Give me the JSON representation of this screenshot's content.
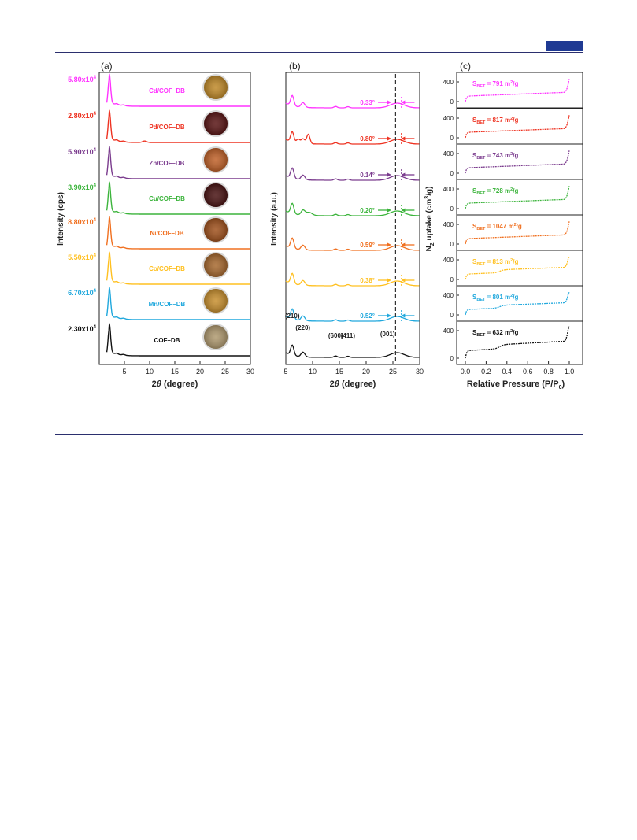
{
  "colors": {
    "Cd": "#ff33ff",
    "Pd": "#ee3322",
    "Zn": "#7b3c8e",
    "Cu": "#3cb43c",
    "Ni": "#f07020",
    "Co": "#ffc020",
    "Mn": "#20a8dd",
    "COF": "#111111",
    "header_rule": "#2b2f6e",
    "header_tag": "#1f3a93"
  },
  "chart_data": [
    {
      "type": "line",
      "panel_label": "(a)",
      "xlabel_prefix": "2",
      "xlabel_theta": "θ",
      "xlabel_suffix": " (degree)",
      "ylabel": "Intensity (cps)",
      "xlim": [
        0,
        30
      ],
      "xticks": [
        "5",
        "10",
        "15",
        "20",
        "25",
        "30"
      ],
      "series": [
        {
          "key": "Cd",
          "name": "Cd/COF–DB",
          "scale_base": "5.80x10",
          "scale_exp": "4",
          "photo": "#c08a2a"
        },
        {
          "key": "Pd",
          "name": "Pd/COF–DB",
          "scale_base": "2.80x10",
          "scale_exp": "4",
          "photo": "#5a1616"
        },
        {
          "key": "Zn",
          "name": "Zn/COF–DB",
          "scale_base": "5.90x10",
          "scale_exp": "4",
          "photo": "#c0622a"
        },
        {
          "key": "Cu",
          "name": "Cu/COF–DB",
          "scale_base": "3.90x10",
          "scale_exp": "4",
          "photo": "#4a1414"
        },
        {
          "key": "Ni",
          "name": "Ni/COF–DB",
          "scale_base": "8.80x10",
          "scale_exp": "4",
          "photo": "#a0521e"
        },
        {
          "key": "Co",
          "name": "Co/COF–DB",
          "scale_base": "5.50x10",
          "scale_exp": "4",
          "photo": "#a86a30"
        },
        {
          "key": "Mn",
          "name": "Mn/COF–DB",
          "scale_base": "6.70x10",
          "scale_exp": "4",
          "photo": "#c89030"
        },
        {
          "key": "COF",
          "name": "COF–DB",
          "scale_base": "2.30x10",
          "scale_exp": "4",
          "photo": "#b09a70"
        }
      ]
    },
    {
      "type": "line",
      "panel_label": "(b)",
      "xlabel_prefix": "2",
      "xlabel_theta": "θ",
      "xlabel_suffix": " (degree)",
      "ylabel": "Intensity (a.u.)",
      "xlim": [
        5,
        30
      ],
      "xticks": [
        "5",
        "10",
        "15",
        "20",
        "25",
        "30"
      ],
      "reference_line_x": 25.5,
      "shifts": [
        {
          "key": "Cd",
          "value": "0.33°"
        },
        {
          "key": "Pd",
          "value": "0.80°"
        },
        {
          "key": "Zn",
          "value": "0.14°"
        },
        {
          "key": "Cu",
          "value": "0.20°"
        },
        {
          "key": "Ni",
          "value": "0.59°"
        },
        {
          "key": "Co",
          "value": "0.38°"
        },
        {
          "key": "Mn",
          "value": "0.52°"
        }
      ],
      "peak_labels": [
        {
          "text": "(210)",
          "x": 6.2
        },
        {
          "text": "(220)",
          "x": 8.2
        },
        {
          "text": "(600)",
          "x": 14.3
        },
        {
          "text": "(411)",
          "x": 16.6
        },
        {
          "text": "(001)",
          "x": 24.0
        }
      ]
    },
    {
      "type": "line",
      "panel_label": "(c)",
      "xlabel_text": "Relative Pressure (P/P",
      "xlabel_sub": "0",
      "xlabel_close": ")",
      "ylabel_n": "N",
      "ylabel_sub": "2",
      "ylabel_rest": " uptake (cm",
      "ylabel_sup": "3",
      "ylabel_end": "/g)",
      "xlim": [
        0,
        1.0
      ],
      "xticks": [
        "0.0",
        "0.2",
        "0.4",
        "0.6",
        "0.8",
        "1.0"
      ],
      "yticks": [
        "0",
        "400"
      ],
      "bet": [
        {
          "key": "Cd",
          "s": "S",
          "sub": "BET",
          "value": " = 791 m",
          "sup": "2",
          "unit": "/g"
        },
        {
          "key": "Pd",
          "s": "S",
          "sub": "BET",
          "value": " = 817 m",
          "sup": "2",
          "unit": "/g"
        },
        {
          "key": "Zn",
          "s": "S",
          "sub": "BET",
          "value": " = 743 m",
          "sup": "2",
          "unit": "/g"
        },
        {
          "key": "Cu",
          "s": "S",
          "sub": "BET",
          "value": " = 728 m",
          "sup": "2",
          "unit": "/g"
        },
        {
          "key": "Ni",
          "s": "S",
          "sub": "BET",
          "value": " = 1047 m",
          "sup": "2",
          "unit": "/g"
        },
        {
          "key": "Co",
          "s": "S",
          "sub": "BET",
          "value": " = 813 m",
          "sup": "2",
          "unit": "/g"
        },
        {
          "key": "Mn",
          "s": "S",
          "sub": "BET",
          "value": " = 801 m",
          "sup": "2",
          "unit": "/g"
        },
        {
          "key": "COF",
          "s": "S",
          "sub": "BET",
          "value": " = 632 m",
          "sup": "2",
          "unit": "/g"
        }
      ]
    }
  ]
}
